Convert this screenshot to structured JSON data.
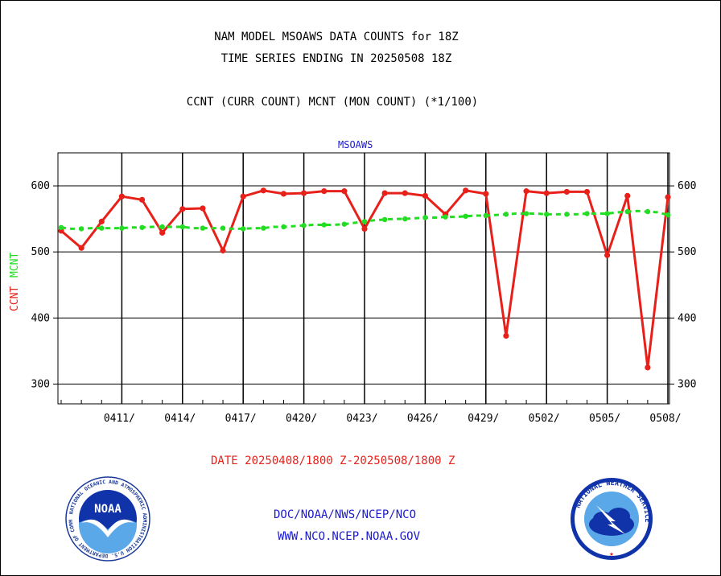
{
  "titles": {
    "line1": "NAM MODEL MSOAWS DATA COUNTS for 18Z",
    "line2": "TIME SERIES ENDING IN 20250508 18Z",
    "subtitle": "CCNT (CURR COUNT) MCNT (MON COUNT) (*1/100)",
    "plot_label": "MSOAWS"
  },
  "axis_labels": {
    "y_ccnt": "CCNT",
    "y_mcnt": "MCNT"
  },
  "footer": {
    "date_range": "DATE 20250408/1800 Z-20250508/1800 Z",
    "org": "DOC/NOAA/NWS/NCEP/NCO",
    "url": "WWW.NCO.NCEP.NOAA.GOV"
  },
  "logos": {
    "left": {
      "name": "NOAA",
      "ring_text": "NATIONAL OCEANIC AND ATMOSPHERIC ADMINISTRATION U.S. DEPARTMENT OF COMMERCE"
    },
    "right": {
      "ring_text": "NATIONAL WEATHER SERVICE"
    }
  },
  "colors": {
    "ccnt": "#e8201a",
    "mcnt": "#22dd22",
    "blue_text": "#1a1acc"
  },
  "chart_data": {
    "type": "line",
    "x_unit": "day index from 0408 (0 = 04/08 18Z)",
    "xlim": [
      0,
      30
    ],
    "ylim": [
      270,
      650
    ],
    "y_ticks": [
      300,
      400,
      500,
      600
    ],
    "x_tick_labels": [
      {
        "x": 3,
        "label": "0411/"
      },
      {
        "x": 6,
        "label": "0414/"
      },
      {
        "x": 9,
        "label": "0417/"
      },
      {
        "x": 12,
        "label": "0420/"
      },
      {
        "x": 15,
        "label": "0423/"
      },
      {
        "x": 18,
        "label": "0426/"
      },
      {
        "x": 21,
        "label": "0429/"
      },
      {
        "x": 24,
        "label": "0502/"
      },
      {
        "x": 27,
        "label": "0505/"
      },
      {
        "x": 30,
        "label": "0508/"
      }
    ],
    "series": [
      {
        "name": "CCNT",
        "color": "#e8201a",
        "x": [
          0,
          1,
          2,
          3,
          4,
          5,
          6,
          7,
          8,
          9,
          10,
          11,
          12,
          13,
          14,
          15,
          16,
          17,
          18,
          19,
          20,
          21,
          22,
          23,
          24,
          25,
          26,
          27,
          28,
          29,
          30
        ],
        "values": [
          532,
          506,
          546,
          584,
          579,
          529,
          565,
          566,
          502,
          584,
          593,
          588,
          589,
          592,
          592,
          535,
          589,
          589,
          585,
          557,
          593,
          588,
          373,
          592,
          589,
          591,
          591,
          495,
          585,
          325,
          583
        ]
      },
      {
        "name": "MCNT",
        "color": "#22dd22",
        "x": [
          0,
          0.5,
          1,
          1.5,
          2,
          2.5,
          3,
          3.5,
          4,
          4.5,
          5,
          5.5,
          6,
          6.5,
          7,
          7.5,
          8,
          8.5,
          9,
          9.5,
          10,
          10.5,
          11,
          11.5,
          12,
          12.5,
          13,
          13.5,
          14,
          14.5,
          15,
          15.5,
          16,
          16.5,
          17,
          17.5,
          18,
          18.5,
          19,
          19.5,
          20,
          20.5,
          21,
          21.5,
          22,
          22.5,
          23,
          23.5,
          24,
          24.5,
          25,
          25.5,
          26,
          26.5,
          27,
          27.5,
          28,
          28.5,
          29,
          29.5,
          30
        ],
        "values": [
          537,
          535,
          535,
          536,
          536,
          536,
          536,
          537,
          537,
          538,
          538,
          538,
          538,
          536,
          536,
          536,
          536,
          535,
          535,
          536,
          536,
          538,
          538,
          539,
          540,
          541,
          541,
          541,
          542,
          544,
          546,
          548,
          549,
          550,
          550,
          551,
          552,
          552,
          553,
          553,
          554,
          555,
          555,
          556,
          557,
          558,
          558,
          558,
          557,
          557,
          557,
          557,
          558,
          558,
          558,
          560,
          561,
          562,
          561,
          560,
          556
        ]
      }
    ]
  }
}
